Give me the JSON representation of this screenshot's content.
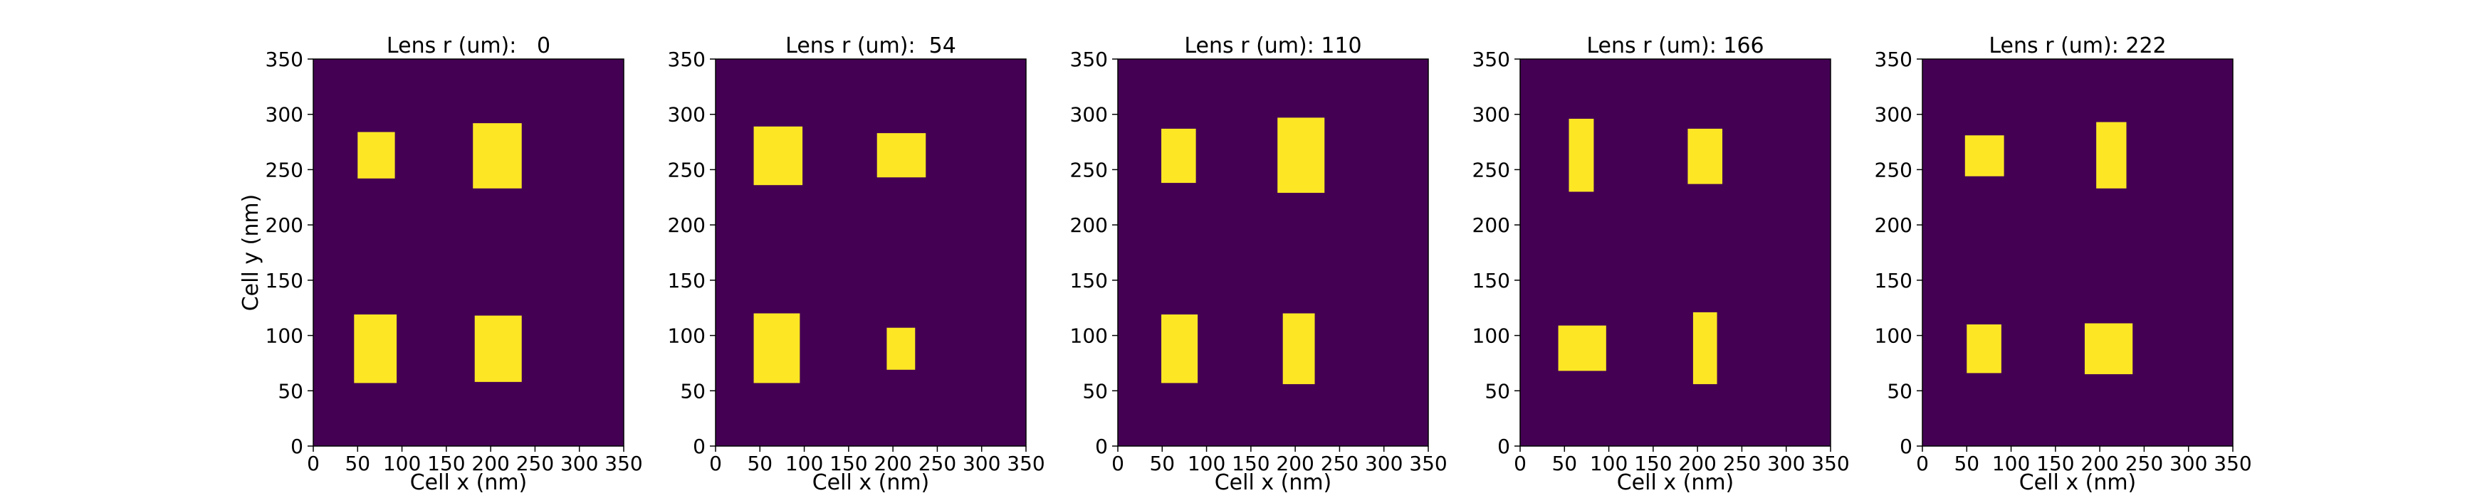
{
  "colors": {
    "background": "#440154",
    "feature": "#fde725",
    "axis": "#000000"
  },
  "chart_data": [
    {
      "type": "heatmap",
      "title": "Lens r (um):   0",
      "xlabel": "Cell x (nm)",
      "ylabel": "Cell y (nm)",
      "xlim": [
        0,
        350
      ],
      "ylim": [
        0,
        350
      ],
      "xticks": [
        "0",
        "50",
        "100",
        "150",
        "200",
        "250",
        "300",
        "350"
      ],
      "yticks": [
        "0",
        "50",
        "100",
        "150",
        "200",
        "250",
        "300",
        "350"
      ],
      "rects": [
        {
          "x0": 50,
          "x1": 92,
          "y0": 242,
          "y1": 284
        },
        {
          "x0": 180,
          "x1": 235,
          "y0": 233,
          "y1": 292
        },
        {
          "x0": 46,
          "x1": 94,
          "y0": 57,
          "y1": 119
        },
        {
          "x0": 182,
          "x1": 235,
          "y0": 58,
          "y1": 118
        }
      ]
    },
    {
      "type": "heatmap",
      "title": "Lens r (um):  54",
      "xlabel": "Cell x (nm)",
      "ylabel": "",
      "xlim": [
        0,
        350
      ],
      "ylim": [
        0,
        350
      ],
      "xticks": [
        "0",
        "50",
        "100",
        "150",
        "200",
        "250",
        "300",
        "350"
      ],
      "yticks": [
        "0",
        "50",
        "100",
        "150",
        "200",
        "250",
        "300",
        "350"
      ],
      "rects": [
        {
          "x0": 43,
          "x1": 98,
          "y0": 236,
          "y1": 289
        },
        {
          "x0": 182,
          "x1": 237,
          "y0": 243,
          "y1": 283
        },
        {
          "x0": 43,
          "x1": 95,
          "y0": 57,
          "y1": 120
        },
        {
          "x0": 193,
          "x1": 225,
          "y0": 69,
          "y1": 107
        }
      ]
    },
    {
      "type": "heatmap",
      "title": "Lens r (um): 110",
      "xlabel": "Cell x (nm)",
      "ylabel": "",
      "xlim": [
        0,
        350
      ],
      "ylim": [
        0,
        350
      ],
      "xticks": [
        "0",
        "50",
        "100",
        "150",
        "200",
        "250",
        "300",
        "350"
      ],
      "yticks": [
        "0",
        "50",
        "100",
        "150",
        "200",
        "250",
        "300",
        "350"
      ],
      "rects": [
        {
          "x0": 49,
          "x1": 88,
          "y0": 238,
          "y1": 287
        },
        {
          "x0": 180,
          "x1": 233,
          "y0": 229,
          "y1": 297
        },
        {
          "x0": 49,
          "x1": 90,
          "y0": 57,
          "y1": 119
        },
        {
          "x0": 186,
          "x1": 222,
          "y0": 56,
          "y1": 120
        }
      ]
    },
    {
      "type": "heatmap",
      "title": "Lens r (um): 166",
      "xlabel": "Cell x (nm)",
      "ylabel": "",
      "xlim": [
        0,
        350
      ],
      "ylim": [
        0,
        350
      ],
      "xticks": [
        "0",
        "50",
        "100",
        "150",
        "200",
        "250",
        "300",
        "350"
      ],
      "yticks": [
        "0",
        "50",
        "100",
        "150",
        "200",
        "250",
        "300",
        "350"
      ],
      "rects": [
        {
          "x0": 55,
          "x1": 83,
          "y0": 230,
          "y1": 296
        },
        {
          "x0": 189,
          "x1": 228,
          "y0": 237,
          "y1": 287
        },
        {
          "x0": 43,
          "x1": 97,
          "y0": 68,
          "y1": 109
        },
        {
          "x0": 195,
          "x1": 222,
          "y0": 56,
          "y1": 121
        }
      ]
    },
    {
      "type": "heatmap",
      "title": "Lens r (um): 222",
      "xlabel": "Cell x (nm)",
      "ylabel": "",
      "xlim": [
        0,
        350
      ],
      "ylim": [
        0,
        350
      ],
      "xticks": [
        "0",
        "50",
        "100",
        "150",
        "200",
        "250",
        "300",
        "350"
      ],
      "yticks": [
        "0",
        "50",
        "100",
        "150",
        "200",
        "250",
        "300",
        "350"
      ],
      "rects": [
        {
          "x0": 48,
          "x1": 92,
          "y0": 244,
          "y1": 281
        },
        {
          "x0": 196,
          "x1": 230,
          "y0": 233,
          "y1": 293
        },
        {
          "x0": 50,
          "x1": 89,
          "y0": 66,
          "y1": 110
        },
        {
          "x0": 183,
          "x1": 237,
          "y0": 65,
          "y1": 111
        }
      ]
    }
  ]
}
